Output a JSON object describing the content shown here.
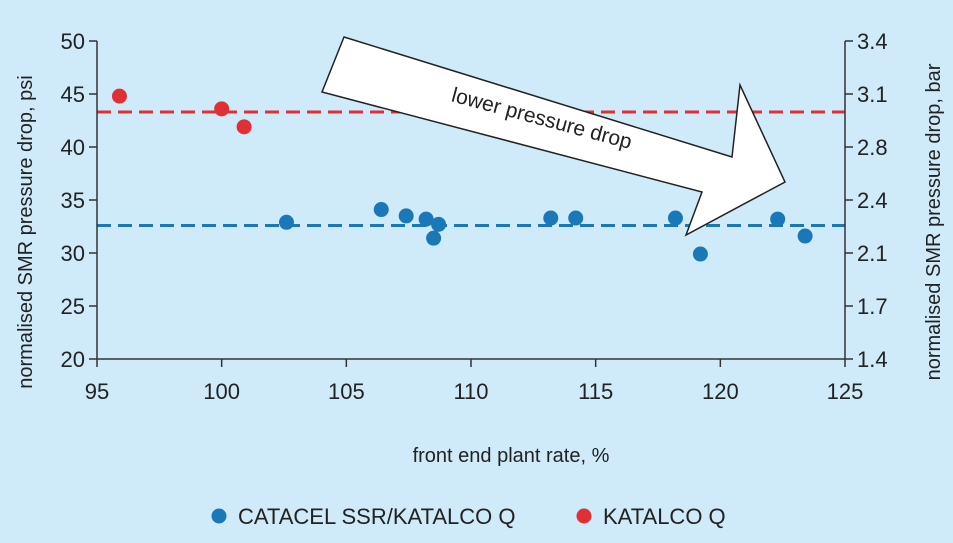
{
  "chart_data": {
    "type": "scatter",
    "xlabel": "front end plant rate, %",
    "ylabel_left": "normalised SMR pressure drop, psi",
    "ylabel_right": "normalised SMR pressure drop, bar",
    "xlim": [
      95,
      125
    ],
    "ylim_left": [
      20,
      50
    ],
    "x_ticks": [
      95,
      100,
      105,
      110,
      115,
      120,
      125
    ],
    "y_ticks_left": [
      20,
      25,
      30,
      35,
      40,
      45,
      50
    ],
    "y_ticks_right": [
      {
        "label": "1.4",
        "psi": 20
      },
      {
        "label": "1.7",
        "psi": 25
      },
      {
        "label": "2.1",
        "psi": 30
      },
      {
        "label": "2.4",
        "psi": 35
      },
      {
        "label": "2.8",
        "psi": 40
      },
      {
        "label": "3.1",
        "psi": 45
      },
      {
        "label": "3.4",
        "psi": 50
      }
    ],
    "grid": false,
    "legend_placement": "bottom",
    "series": [
      {
        "name": "CATACEL SSR/KATALCO Q",
        "color": "#1a78b8",
        "reference_line_psi": 32.6,
        "points": [
          {
            "x": 102.6,
            "y": 32.9
          },
          {
            "x": 106.4,
            "y": 34.1
          },
          {
            "x": 107.4,
            "y": 33.5
          },
          {
            "x": 108.2,
            "y": 33.2
          },
          {
            "x": 108.7,
            "y": 32.7
          },
          {
            "x": 108.5,
            "y": 31.4
          },
          {
            "x": 113.2,
            "y": 33.3
          },
          {
            "x": 114.2,
            "y": 33.3
          },
          {
            "x": 118.2,
            "y": 33.3
          },
          {
            "x": 119.2,
            "y": 29.9
          },
          {
            "x": 122.3,
            "y": 33.2
          },
          {
            "x": 123.4,
            "y": 31.6
          }
        ]
      },
      {
        "name": "KATALCO Q",
        "color": "#e03036",
        "reference_line_psi": 43.3,
        "points": [
          {
            "x": 95.9,
            "y": 44.8
          },
          {
            "x": 100.0,
            "y": 43.6
          },
          {
            "x": 100.9,
            "y": 41.9
          }
        ]
      }
    ],
    "annotations": [
      {
        "text": "lower pressure drop",
        "type": "arrow",
        "direction": "down-right"
      }
    ]
  }
}
